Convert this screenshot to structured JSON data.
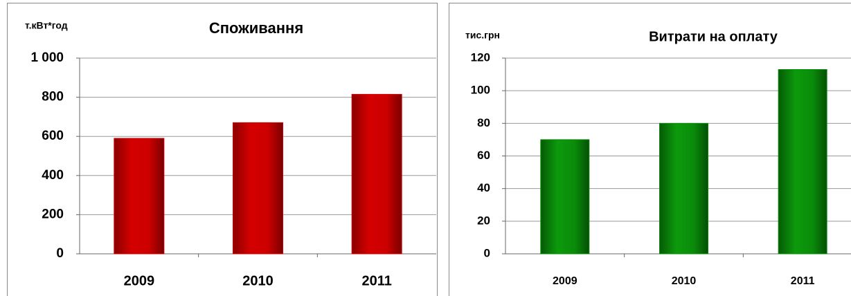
{
  "chart_data": [
    {
      "type": "bar",
      "title": "Споживання",
      "y_label": "т.кВт*год",
      "categories": [
        "2009",
        "2010",
        "2011"
      ],
      "values": [
        590,
        670,
        815
      ],
      "color": "#cc0000",
      "ylim": [
        0,
        1000
      ],
      "yticks": [
        0,
        200,
        400,
        600,
        800,
        {
          "value": 1000,
          "label": "1 000"
        }
      ],
      "grid": true
    },
    {
      "type": "bar",
      "title": "Витрати на оплату",
      "y_label": "тис.грн",
      "categories": [
        "2009",
        "2010",
        "2011"
      ],
      "values": [
        70,
        80,
        113
      ],
      "color": "#0a8c0a",
      "ylim": [
        0,
        120
      ],
      "yticks": [
        0,
        20,
        40,
        60,
        80,
        100,
        120
      ],
      "grid": true
    }
  ]
}
